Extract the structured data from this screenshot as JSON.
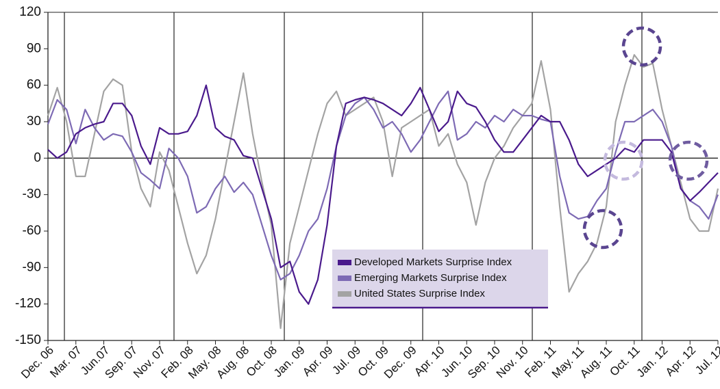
{
  "chart_data": {
    "type": "line",
    "categories": [
      "Dec. 06",
      null,
      null,
      "Mar. 07",
      null,
      null,
      "Jun.07",
      null,
      null,
      "Sep. 07",
      null,
      null,
      "Nov. 07",
      null,
      null,
      "Feb. 08",
      null,
      null,
      "May. 08",
      null,
      null,
      "Aug. 08",
      null,
      null,
      "Oct. 08",
      null,
      null,
      "Jan. 09",
      null,
      null,
      "Apr. 09",
      null,
      null,
      "Jul. 09",
      null,
      null,
      "Oct. 09",
      null,
      null,
      "Dec. 09",
      null,
      null,
      "Apr. 10",
      null,
      null,
      "Jun. 10",
      null,
      null,
      "Sep. 10",
      null,
      null,
      "Nov. 10",
      null,
      null,
      "Feb. 11",
      null,
      null,
      "May. 11",
      null,
      null,
      "Aug. 11",
      null,
      null,
      "Oct. 11",
      null,
      null,
      "Jan. 12",
      null,
      null,
      "Apr. 12",
      null,
      null,
      "Jul. 12"
    ],
    "series": [
      {
        "name": "Developed Markets Surprise Index",
        "color": "#4a1a8c",
        "values": [
          7,
          0,
          5,
          20,
          25,
          28,
          30,
          45,
          45,
          35,
          10,
          -5,
          25,
          20,
          20,
          22,
          35,
          60,
          25,
          18,
          15,
          2,
          0,
          -25,
          -50,
          -90,
          -85,
          -110,
          -120,
          -100,
          -55,
          10,
          45,
          48,
          50,
          48,
          45,
          40,
          35,
          45,
          58,
          40,
          22,
          30,
          55,
          45,
          42,
          30,
          15,
          5,
          5,
          15,
          25,
          35,
          30,
          30,
          15,
          -5,
          -15,
          -10,
          -5,
          0,
          8,
          5,
          15,
          15,
          15,
          5,
          -25,
          -35,
          -28,
          -20,
          -12
        ]
      },
      {
        "name": "Emerging Markets Surprise Index",
        "color": "#7d6ab4",
        "values": [
          28,
          48,
          40,
          12,
          40,
          25,
          15,
          20,
          18,
          5,
          -12,
          -18,
          -25,
          8,
          0,
          -15,
          -45,
          -40,
          -25,
          -15,
          -28,
          -20,
          -30,
          -55,
          -80,
          -100,
          -95,
          -80,
          -60,
          -50,
          -25,
          10,
          35,
          45,
          50,
          40,
          25,
          30,
          20,
          5,
          15,
          30,
          45,
          55,
          15,
          20,
          30,
          25,
          35,
          30,
          40,
          35,
          35,
          32,
          30,
          -15,
          -45,
          -50,
          -48,
          -35,
          -25,
          5,
          30,
          30,
          35,
          40,
          30,
          10,
          -25,
          -35,
          -40,
          -50,
          -30
        ]
      },
      {
        "name": "United States Surprise Index",
        "color": "#a3a3a3",
        "values": [
          35,
          58,
          30,
          -15,
          -15,
          20,
          55,
          65,
          60,
          5,
          -25,
          -40,
          5,
          -10,
          -40,
          -70,
          -95,
          -80,
          -50,
          -10,
          30,
          70,
          20,
          -20,
          -55,
          -140,
          -70,
          -40,
          -10,
          20,
          45,
          55,
          35,
          40,
          45,
          50,
          30,
          -15,
          25,
          30,
          35,
          40,
          10,
          20,
          -5,
          -20,
          -55,
          -20,
          0,
          10,
          25,
          35,
          45,
          80,
          40,
          -40,
          -110,
          -95,
          -85,
          -70,
          -40,
          30,
          60,
          85,
          75,
          78,
          40,
          10,
          -20,
          -50,
          -60,
          -60,
          -25
        ]
      }
    ],
    "ylim": [
      -150,
      120
    ],
    "yticks": [
      -150,
      -120,
      -90,
      -60,
      -30,
      0,
      30,
      60,
      90,
      120
    ],
    "legend": "lower center"
  }
}
